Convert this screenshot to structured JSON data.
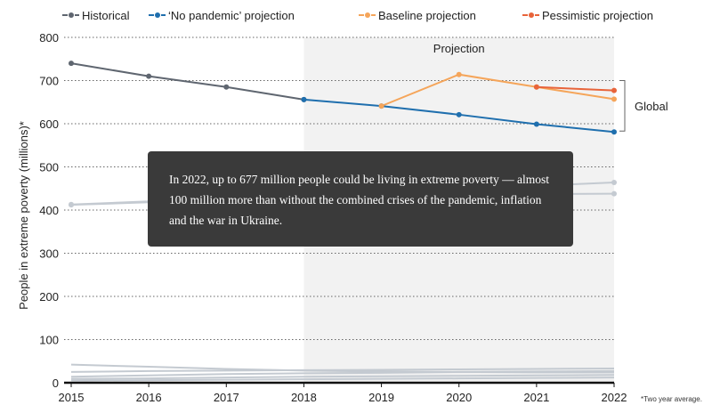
{
  "chart_data": {
    "type": "line",
    "ylabel": "People in extreme poverty (millions)*",
    "ylim": [
      0,
      800
    ],
    "yticks": [
      0,
      100,
      200,
      300,
      400,
      500,
      600,
      700,
      800
    ],
    "x": [
      2015,
      2016,
      2017,
      2018,
      2019,
      2020,
      2021,
      2022
    ],
    "projection_label": "Projection",
    "projection_range": [
      2018,
      2022
    ],
    "grid": "horizontal-dotted",
    "legend_position": "top",
    "series": [
      {
        "name": "Historical",
        "color": "#5f6670",
        "x": [
          2015,
          2016,
          2017,
          2018
        ],
        "values": [
          740,
          710,
          685,
          656
        ]
      },
      {
        "name": "‘No pandemic’ projection",
        "color": "#1f6fae",
        "x": [
          2018,
          2019,
          2020,
          2021,
          2022
        ],
        "values": [
          656,
          641,
          621,
          599,
          581
        ]
      },
      {
        "name": "Baseline projection",
        "color": "#f5a55a",
        "x": [
          2019,
          2020,
          2021,
          2022
        ],
        "values": [
          641,
          714,
          685,
          657
        ]
      },
      {
        "name": "Pessimistic projection",
        "color": "#e8643a",
        "x": [
          2021,
          2022
        ],
        "values": [
          685,
          677
        ]
      }
    ],
    "background_series": [
      {
        "color": "#c4cad1",
        "x": [
          2015,
          2016,
          2017,
          2018,
          2019,
          2020,
          2021,
          2022
        ],
        "values": [
          413,
          420,
          426,
          432,
          440,
          448,
          456,
          464
        ]
      },
      {
        "color": "#c4cad1",
        "x": [
          2015,
          2016,
          2017,
          2018,
          2019,
          2020,
          2021,
          2022
        ],
        "values": [
          412,
          418,
          423,
          428,
          432,
          435,
          437,
          438
        ]
      },
      {
        "color": "#c4cad1",
        "x": [
          2015,
          2016,
          2017,
          2018,
          2019,
          2020,
          2021,
          2022
        ],
        "values": [
          42,
          37,
          32,
          28,
          26,
          25,
          24,
          24
        ]
      },
      {
        "color": "#c4cad1",
        "x": [
          2015,
          2016,
          2017,
          2018,
          2019,
          2020,
          2021,
          2022
        ],
        "values": [
          25,
          27,
          28,
          29,
          30,
          31,
          32,
          33
        ]
      },
      {
        "color": "#c4cad1",
        "x": [
          2015,
          2016,
          2017,
          2018,
          2019,
          2020,
          2021,
          2022
        ],
        "values": [
          14,
          17,
          20,
          22,
          23,
          25,
          26,
          27
        ]
      },
      {
        "color": "#c4cad1",
        "x": [
          2015,
          2016,
          2017,
          2018,
          2019,
          2020,
          2021,
          2022
        ],
        "values": [
          9,
          10,
          12,
          14,
          15,
          16,
          17,
          18
        ]
      },
      {
        "color": "#c4cad1",
        "x": [
          2015,
          2016,
          2017,
          2018,
          2019,
          2020,
          2021,
          2022
        ],
        "values": [
          5,
          6,
          7,
          8,
          9,
          10,
          11,
          12
        ]
      }
    ],
    "annotation": {
      "label": "Global"
    }
  },
  "tooltip": {
    "text": "In 2022, up to 677 million people could be living in extreme poverty — almost 100 million more than without the combined crises of the pandemic, inflation and the war in Ukraine."
  },
  "footnote": "*Two year average."
}
